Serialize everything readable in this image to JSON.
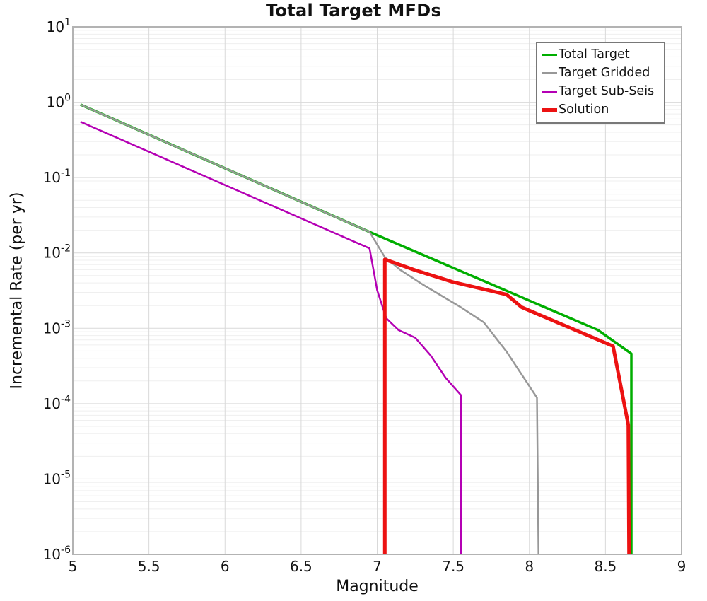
{
  "title": "Total Target MFDs",
  "chart_data": {
    "type": "line",
    "title": "Total Target MFDs",
    "xlabel": "Magnitude",
    "ylabel": "Incremental Rate (per yr)",
    "x_axis": {
      "min": 5,
      "max": 9,
      "ticks": [
        5,
        5.5,
        6,
        6.5,
        7,
        7.5,
        8,
        8.5,
        9
      ],
      "tick_labels": [
        "5",
        "5.5",
        "6",
        "6.5",
        "7",
        "7.5",
        "8",
        "8.5",
        "9"
      ]
    },
    "y_axis": {
      "scale": "log",
      "min": 1e-06,
      "max": 10,
      "tick_exponents": [
        1,
        0,
        -1,
        -2,
        -3,
        -4,
        -5,
        -6
      ]
    },
    "grid": {
      "vertical_step": 0.5,
      "log_minor_lines": true,
      "major_color": "#d9d9d9",
      "minor_color": "#efefef",
      "frame_color": "#b3b3b3"
    },
    "legend_position": "top-right",
    "series": [
      {
        "name": "Total Target",
        "color": "#00ae00",
        "width": 3.5,
        "points": [
          [
            5.05,
            0.93
          ],
          [
            6.95,
            0.019
          ],
          [
            8.45,
            0.00095
          ],
          [
            8.67,
            0.00046
          ],
          [
            8.67,
            1e-06
          ]
        ]
      },
      {
        "name": "Target Gridded",
        "color": "#989898",
        "width": 2.5,
        "points": [
          [
            5.05,
            0.93
          ],
          [
            6.95,
            0.019
          ],
          [
            7.05,
            0.0088
          ],
          [
            7.15,
            0.006
          ],
          [
            7.3,
            0.0038
          ],
          [
            7.55,
            0.0019
          ],
          [
            7.7,
            0.0012
          ],
          [
            7.85,
            0.00049
          ],
          [
            8.05,
            0.00012
          ],
          [
            8.06,
            1e-06
          ]
        ]
      },
      {
        "name": "Target Sub-Seis",
        "color": "#b400b4",
        "width": 2.5,
        "points": [
          [
            5.05,
            0.55
          ],
          [
            6.95,
            0.0115
          ],
          [
            7.0,
            0.0032
          ],
          [
            7.06,
            0.00136
          ],
          [
            7.14,
            0.00095
          ],
          [
            7.25,
            0.00075
          ],
          [
            7.35,
            0.00044
          ],
          [
            7.45,
            0.00022
          ],
          [
            7.55,
            0.00013
          ],
          [
            7.55,
            1e-06
          ]
        ]
      },
      {
        "name": "Solution",
        "color": "#ec1212",
        "width": 5,
        "points": [
          [
            7.05,
            1e-06
          ],
          [
            7.05,
            0.0082
          ],
          [
            7.25,
            0.0059
          ],
          [
            7.5,
            0.0041
          ],
          [
            7.85,
            0.0028
          ],
          [
            7.95,
            0.0019
          ],
          [
            8.55,
            0.00058
          ],
          [
            8.65,
            5.2e-05
          ],
          [
            8.655,
            1e-06
          ]
        ]
      }
    ]
  }
}
